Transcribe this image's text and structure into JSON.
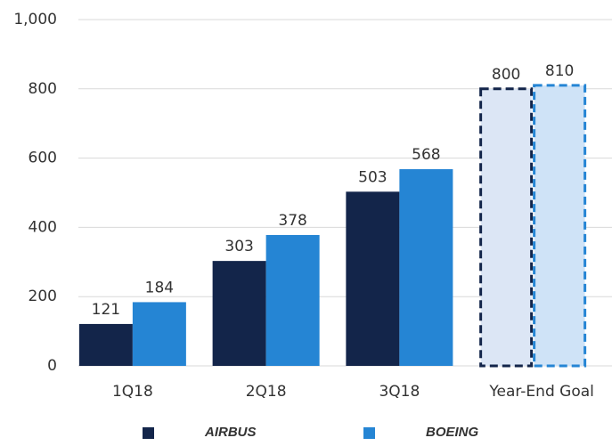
{
  "chart_data": {
    "type": "bar",
    "categories": [
      "1Q18",
      "2Q18",
      "3Q18",
      "Year-End Goal"
    ],
    "series": [
      {
        "name": "AIRBUS",
        "color": "#13254a",
        "values": [
          121,
          303,
          503,
          800
        ]
      },
      {
        "name": "BOEING",
        "color": "#2585d4",
        "values": [
          184,
          378,
          568,
          810
        ]
      }
    ],
    "ylim": [
      0,
      1000
    ],
    "yticks": [
      0,
      200,
      400,
      600,
      800,
      {
        "value": 1000,
        "label": "1,000"
      }
    ],
    "grid": true,
    "legend": "bottom"
  }
}
